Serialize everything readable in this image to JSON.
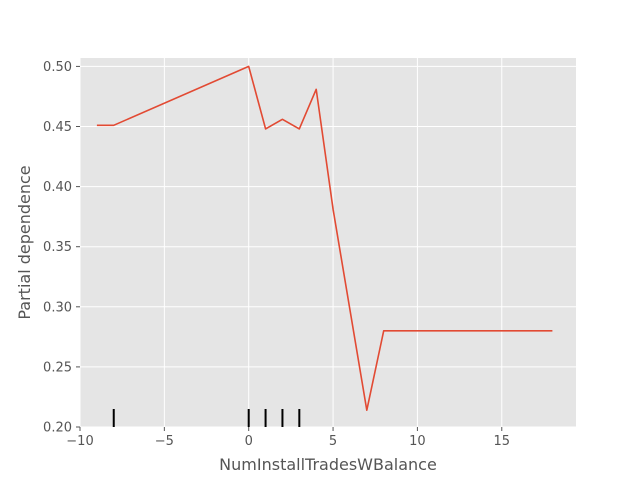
{
  "chart_data": {
    "type": "line",
    "xlabel": "NumInstallTradesWBalance",
    "ylabel": "Partial dependence",
    "xlim": [
      -10,
      19.4
    ],
    "ylim": [
      0.2,
      0.507
    ],
    "xticks": [
      -10,
      -5,
      0,
      5,
      10,
      15
    ],
    "xtick_labels": [
      "−10",
      "−5",
      "0",
      "5",
      "10",
      "15"
    ],
    "yticks": [
      0.2,
      0.25,
      0.3,
      0.35,
      0.4,
      0.45,
      0.5
    ],
    "ytick_labels": [
      "0.20",
      "0.25",
      "0.30",
      "0.35",
      "0.40",
      "0.45",
      "0.50"
    ],
    "grid": true,
    "background": "#e5e5e5",
    "line_color": "#e24a33",
    "rug_color": "#000000",
    "series": [
      {
        "x": [
          -9,
          -8,
          0,
          1,
          2,
          3,
          4,
          5,
          7,
          8,
          18
        ],
        "y": [
          0.451,
          0.451,
          0.5,
          0.448,
          0.456,
          0.448,
          0.481,
          0.381,
          0.214,
          0.28,
          0.28
        ]
      }
    ],
    "rug_x": [
      -8,
      0,
      1,
      2,
      3
    ]
  }
}
